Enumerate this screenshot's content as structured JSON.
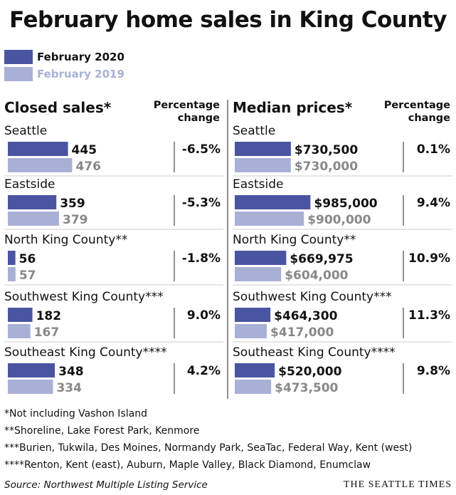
{
  "title": "February home sales in King County",
  "legend": {
    "current": "February 2020",
    "previous": "February 2019"
  },
  "colors": {
    "current": "#4a55a1",
    "previous": "#a9b0d5",
    "divider": "#222222",
    "rowline": "#cccccc"
  },
  "footnotes": [
    "*Not including Vashon Island",
    "**Shoreline, Lake Forest Park, Kenmore",
    "***Burien, Tukwila, Des Moines, Normandy Park, SeaTac, Federal Way, Kent (west)",
    "****Renton, Kent (east), Auburn, Maple Valley, Black Diamond, Enumclaw"
  ],
  "source": "Source: Northwest Multiple Listing Service",
  "brand": "THE SEATTLE TIMES",
  "chart_data": [
    {
      "type": "bar",
      "title": "Closed sales*",
      "change_header": [
        "Percentage",
        "change"
      ],
      "categories": [
        "Seattle",
        "Eastside",
        "North King County**",
        "Southwest King County***",
        "Southeast King County****"
      ],
      "series": [
        {
          "name": "February 2020",
          "values": [
            445,
            359,
            56,
            182,
            348
          ],
          "labels": [
            "445",
            "359",
            "56",
            "182",
            "348"
          ]
        },
        {
          "name": "February 2019",
          "values": [
            476,
            379,
            57,
            167,
            334
          ],
          "labels": [
            "476",
            "379",
            "57",
            "167",
            "334"
          ]
        }
      ],
      "change": [
        "-6.5%",
        "-5.3%",
        "-1.8%",
        "9.0%",
        "4.2%"
      ],
      "xlim": [
        0,
        500
      ]
    },
    {
      "type": "bar",
      "title": "Median prices*",
      "change_header": [
        "Percentage",
        "change"
      ],
      "categories": [
        "Seattle",
        "Eastside",
        "North King County**",
        "Southwest King County***",
        "Southeast King County****"
      ],
      "series": [
        {
          "name": "February 2020",
          "values": [
            730500,
            985000,
            669975,
            464300,
            520000
          ],
          "labels": [
            "$730,500",
            "$985,000",
            "$669,975",
            "$464,300",
            "$520,000"
          ]
        },
        {
          "name": "February 2019",
          "values": [
            730000,
            900000,
            604000,
            417000,
            473500
          ],
          "labels": [
            "$730,000",
            "$900,000",
            "$604,000",
            "$417,000",
            "$473,500"
          ]
        }
      ],
      "change": [
        "0.1%",
        "9.4%",
        "10.9%",
        "11.3%",
        "9.8%"
      ],
      "xlim": [
        0,
        1000000
      ]
    }
  ]
}
